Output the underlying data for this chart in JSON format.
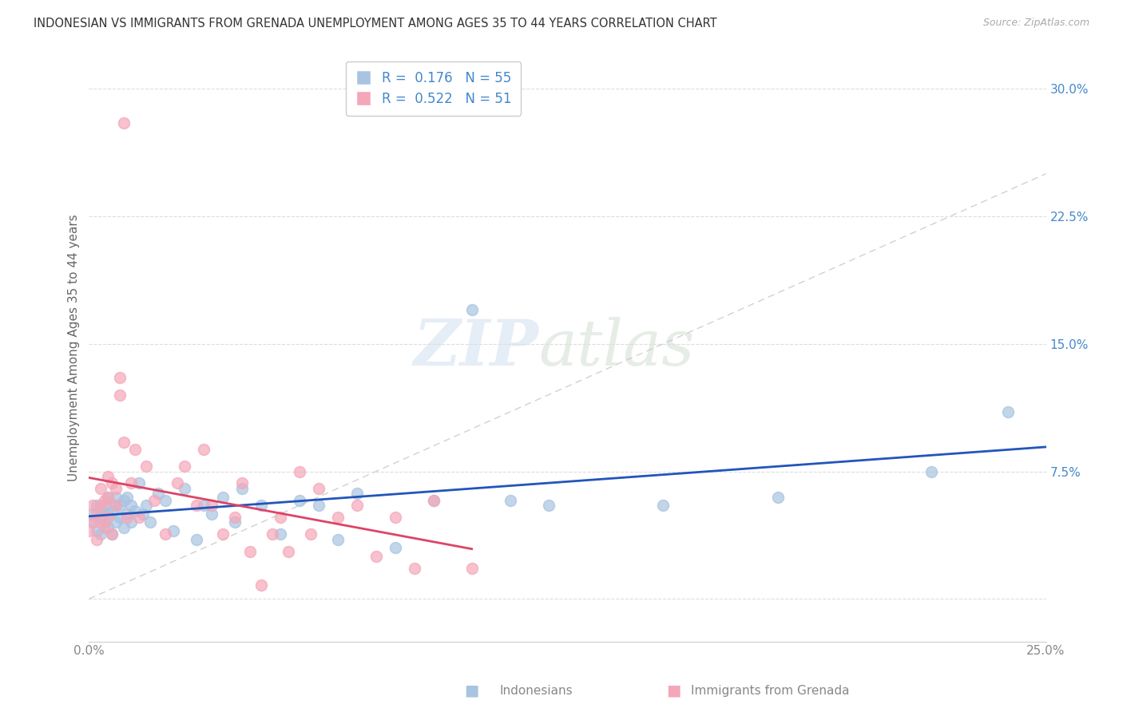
{
  "title": "INDONESIAN VS IMMIGRANTS FROM GRENADA UNEMPLOYMENT AMONG AGES 35 TO 44 YEARS CORRELATION CHART",
  "source": "Source: ZipAtlas.com",
  "ylabel": "Unemployment Among Ages 35 to 44 years",
  "R1": 0.176,
  "N1": 55,
  "R2": 0.522,
  "N2": 51,
  "color_indonesian": "#a8c4e0",
  "color_grenada": "#f4a7b9",
  "line_color_indonesian": "#2255bb",
  "line_color_grenada": "#dd4466",
  "diag_line_color": "#cccccc",
  "background_color": "#ffffff",
  "watermark_zip": "ZIP",
  "watermark_atlas": "atlas",
  "legend_label_1": "Indonesians",
  "legend_label_2": "Immigrants from Grenada",
  "xlim": [
    0.0,
    0.25
  ],
  "ylim": [
    -0.025,
    0.32
  ],
  "indonesian_x": [
    0.001,
    0.001,
    0.002,
    0.002,
    0.003,
    0.003,
    0.003,
    0.004,
    0.004,
    0.005,
    0.005,
    0.005,
    0.006,
    0.006,
    0.007,
    0.007,
    0.007,
    0.008,
    0.008,
    0.009,
    0.009,
    0.01,
    0.01,
    0.011,
    0.011,
    0.012,
    0.013,
    0.014,
    0.015,
    0.016,
    0.018,
    0.02,
    0.022,
    0.025,
    0.028,
    0.03,
    0.032,
    0.035,
    0.038,
    0.04,
    0.045,
    0.05,
    0.055,
    0.06,
    0.065,
    0.07,
    0.08,
    0.09,
    0.1,
    0.11,
    0.12,
    0.15,
    0.18,
    0.22,
    0.24
  ],
  "indonesian_y": [
    0.05,
    0.045,
    0.055,
    0.04,
    0.048,
    0.052,
    0.038,
    0.045,
    0.055,
    0.042,
    0.05,
    0.06,
    0.038,
    0.052,
    0.045,
    0.055,
    0.06,
    0.048,
    0.055,
    0.042,
    0.058,
    0.05,
    0.06,
    0.055,
    0.045,
    0.052,
    0.068,
    0.05,
    0.055,
    0.045,
    0.062,
    0.058,
    0.04,
    0.065,
    0.035,
    0.055,
    0.05,
    0.06,
    0.045,
    0.065,
    0.055,
    0.038,
    0.058,
    0.055,
    0.035,
    0.062,
    0.03,
    0.058,
    0.17,
    0.058,
    0.055,
    0.055,
    0.06,
    0.075,
    0.11
  ],
  "grenada_x": [
    0.0,
    0.001,
    0.001,
    0.002,
    0.002,
    0.003,
    0.003,
    0.003,
    0.004,
    0.004,
    0.005,
    0.005,
    0.005,
    0.006,
    0.006,
    0.007,
    0.007,
    0.008,
    0.008,
    0.009,
    0.009,
    0.01,
    0.011,
    0.012,
    0.013,
    0.015,
    0.017,
    0.02,
    0.023,
    0.025,
    0.028,
    0.03,
    0.032,
    0.035,
    0.038,
    0.04,
    0.042,
    0.045,
    0.048,
    0.05,
    0.052,
    0.055,
    0.058,
    0.06,
    0.065,
    0.07,
    0.075,
    0.08,
    0.085,
    0.09,
    0.1
  ],
  "grenada_y": [
    0.04,
    0.045,
    0.055,
    0.035,
    0.05,
    0.045,
    0.055,
    0.065,
    0.042,
    0.058,
    0.048,
    0.06,
    0.072,
    0.038,
    0.068,
    0.055,
    0.065,
    0.12,
    0.13,
    0.092,
    0.28,
    0.048,
    0.068,
    0.088,
    0.048,
    0.078,
    0.058,
    0.038,
    0.068,
    0.078,
    0.055,
    0.088,
    0.055,
    0.038,
    0.048,
    0.068,
    0.028,
    0.008,
    0.038,
    0.048,
    0.028,
    0.075,
    0.038,
    0.065,
    0.048,
    0.055,
    0.025,
    0.048,
    0.018,
    0.058,
    0.018
  ]
}
